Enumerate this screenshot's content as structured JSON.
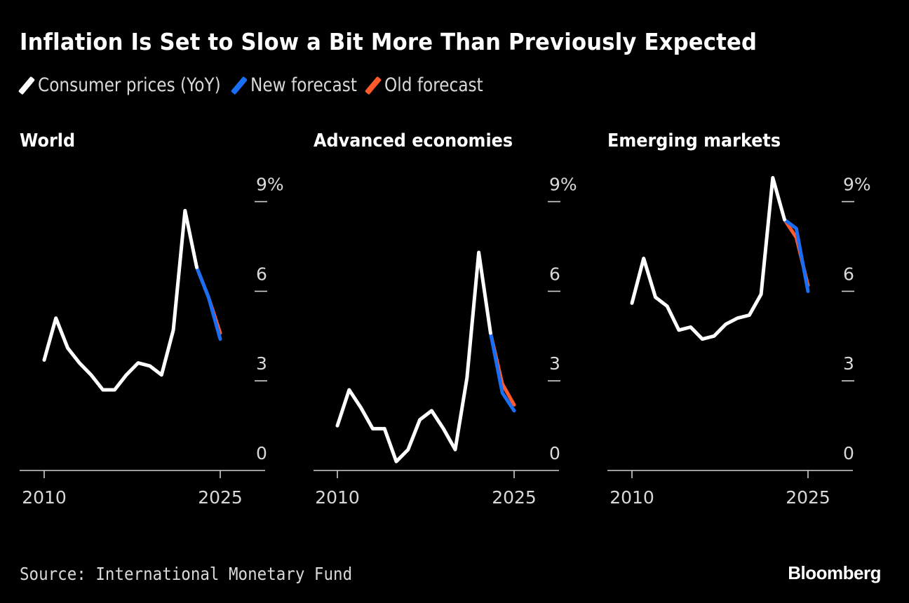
{
  "title": "Inflation Is Set to Slow a Bit More Than Previously Expected",
  "legend": [
    {
      "label": "Consumer prices (YoY)",
      "color": "#ffffff"
    },
    {
      "label": "New forecast",
      "color": "#1a6ef5"
    },
    {
      "label": "Old forecast",
      "color": "#ff5a2a"
    }
  ],
  "source": "Source: International Monetary Fund",
  "brand": "Bloomberg",
  "chart_data": [
    {
      "type": "line",
      "title": "World",
      "x_ticks": [
        2010,
        2025
      ],
      "x_tick_labels": [
        "2010",
        "2025"
      ],
      "y_ticks": [
        0,
        3,
        6,
        9
      ],
      "y_tick_labels": [
        "0",
        "3",
        "6",
        "9%"
      ],
      "xlim": [
        2008,
        2028
      ],
      "ylim": [
        0,
        9.8
      ],
      "series": [
        {
          "name": "Consumer prices (YoY)",
          "x": [
            2010,
            2011,
            2012,
            2013,
            2014,
            2015,
            2016,
            2017,
            2018,
            2019,
            2020,
            2021,
            2022,
            2023
          ],
          "values": [
            3.7,
            5.1,
            4.1,
            3.6,
            3.2,
            2.7,
            2.7,
            3.2,
            3.6,
            3.5,
            3.2,
            4.7,
            8.7,
            6.8
          ]
        },
        {
          "name": "Old forecast",
          "x": [
            2023,
            2024,
            2025
          ],
          "values": [
            6.8,
            5.8,
            4.6
          ]
        },
        {
          "name": "New forecast",
          "x": [
            2023,
            2024,
            2025
          ],
          "values": [
            6.8,
            5.8,
            4.4
          ]
        }
      ]
    },
    {
      "type": "line",
      "title": "Advanced economies",
      "x_ticks": [
        2010,
        2025
      ],
      "x_tick_labels": [
        "2010",
        "2025"
      ],
      "y_ticks": [
        0,
        3,
        6,
        9
      ],
      "y_tick_labels": [
        "0",
        "3",
        "6",
        "9%"
      ],
      "xlim": [
        2008,
        2028
      ],
      "ylim": [
        0,
        9.8
      ],
      "series": [
        {
          "name": "Consumer prices (YoY)",
          "x": [
            2010,
            2011,
            2012,
            2013,
            2014,
            2015,
            2016,
            2017,
            2018,
            2019,
            2020,
            2021,
            2022,
            2023
          ],
          "values": [
            1.5,
            2.7,
            2.1,
            1.4,
            1.4,
            0.3,
            0.7,
            1.7,
            2.0,
            1.4,
            0.7,
            3.1,
            7.3,
            4.6
          ]
        },
        {
          "name": "Old forecast",
          "x": [
            2023,
            2024,
            2025
          ],
          "values": [
            4.6,
            2.9,
            2.2
          ]
        },
        {
          "name": "New forecast",
          "x": [
            2023,
            2024,
            2025
          ],
          "values": [
            4.6,
            2.6,
            2.0
          ]
        }
      ]
    },
    {
      "type": "line",
      "title": "Emerging markets",
      "x_ticks": [
        2010,
        2025
      ],
      "x_tick_labels": [
        "2010",
        "2025"
      ],
      "y_ticks": [
        0,
        3,
        6,
        9
      ],
      "y_tick_labels": [
        "0",
        "3",
        "6",
        "9%"
      ],
      "xlim": [
        2008,
        2028
      ],
      "ylim": [
        0,
        9.8
      ],
      "series": [
        {
          "name": "Consumer prices (YoY)",
          "x": [
            2010,
            2011,
            2012,
            2013,
            2014,
            2015,
            2016,
            2017,
            2018,
            2019,
            2020,
            2021,
            2022,
            2023
          ],
          "values": [
            5.6,
            7.1,
            5.8,
            5.5,
            4.7,
            4.8,
            4.4,
            4.5,
            4.9,
            5.1,
            5.2,
            5.9,
            9.8,
            8.4
          ]
        },
        {
          "name": "Old forecast",
          "x": [
            2023,
            2024,
            2025
          ],
          "values": [
            8.4,
            7.8,
            6.2
          ]
        },
        {
          "name": "New forecast",
          "x": [
            2023,
            2024,
            2025
          ],
          "values": [
            8.4,
            8.1,
            6.0
          ]
        }
      ]
    }
  ]
}
